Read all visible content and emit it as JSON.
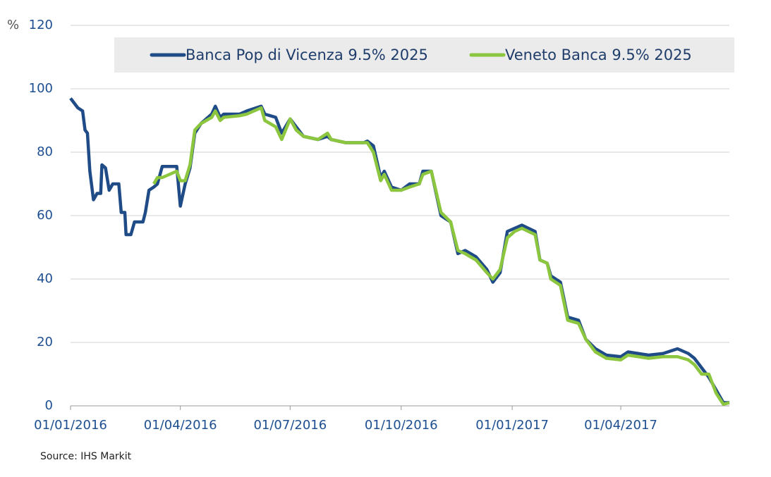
{
  "chart_data": {
    "type": "line",
    "y_unit_label": "%",
    "source": "Source: IHS Markit",
    "x": [
      "01/01/2016",
      "07/01/2016",
      "11/01/2016",
      "13/01/2016",
      "15/01/2016",
      "17/01/2016",
      "20/01/2016",
      "23/01/2016",
      "26/01/2016",
      "27/01/2016",
      "30/01/2016",
      "02/02/2016",
      "05/02/2016",
      "10/02/2016",
      "12/02/2016",
      "15/02/2016",
      "16/02/2016",
      "20/02/2016",
      "23/02/2016",
      "01/03/2016",
      "03/03/2016",
      "06/03/2016",
      "10/03/2016",
      "13/03/2016",
      "17/03/2016",
      "29/03/2016",
      "01/04/2016",
      "05/04/2016",
      "09/04/2016",
      "13/04/2016",
      "18/04/2016",
      "27/04/2016",
      "30/04/2016",
      "04/05/2016",
      "07/05/2016",
      "20/05/2016",
      "26/05/2016",
      "07/06/2016",
      "10/06/2016",
      "19/06/2016",
      "24/06/2016",
      "01/07/2016",
      "06/07/2016",
      "12/07/2016",
      "24/07/2016",
      "01/08/2016",
      "04/08/2016",
      "16/08/2016",
      "31/08/2016",
      "03/09/2016",
      "08/09/2016",
      "14/09/2016",
      "17/09/2016",
      "23/09/2016",
      "01/10/2016",
      "08/10/2016",
      "16/10/2016",
      "19/10/2016",
      "26/10/2016",
      "03/11/2016",
      "11/11/2016",
      "17/11/2016",
      "23/11/2016",
      "02/12/2016",
      "11/12/2016",
      "16/12/2016",
      "22/12/2016",
      "28/12/2016",
      "03/01/2017",
      "09/01/2017",
      "20/01/2017",
      "24/01/2017",
      "30/01/2017",
      "02/02/2017",
      "10/02/2017",
      "16/02/2017",
      "25/02/2017",
      "03/03/2017",
      "11/03/2017",
      "20/03/2017",
      "01/04/2017",
      "07/04/2017",
      "24/04/2017",
      "06/05/2017",
      "18/05/2017",
      "27/05/2017",
      "01/06/2017",
      "07/06/2017",
      "13/06/2017",
      "19/06/2017",
      "25/06/2017",
      "30/06/2017"
    ],
    "series": [
      {
        "name": "Banca Pop di Vicenza 9.5% 2025",
        "color": "#1f4b86",
        "values": [
          97,
          94,
          93,
          87,
          86,
          74,
          65,
          67,
          67,
          76,
          75,
          68,
          70,
          70,
          61,
          61,
          54,
          54,
          58,
          58,
          61,
          68,
          69,
          70,
          75.5,
          75.5,
          63,
          70,
          75,
          86,
          89,
          92,
          94.5,
          91,
          92,
          92,
          93,
          94.5,
          92,
          91,
          86,
          90.5,
          88,
          85,
          84,
          85,
          84,
          83,
          83,
          83.5,
          82,
          72,
          74,
          69,
          68,
          70,
          70,
          74,
          74,
          60,
          58,
          48,
          49,
          47,
          43,
          39,
          42,
          55,
          56,
          57,
          55,
          46,
          45,
          41,
          39,
          28,
          27,
          21,
          18,
          16,
          15.5,
          17,
          16,
          16.5,
          18,
          16.5,
          15,
          12,
          9,
          5,
          1,
          1
        ]
      },
      {
        "name": "Veneto Banca 9.5% 2025",
        "color": "#8cc63f",
        "values": [
          null,
          null,
          null,
          null,
          null,
          null,
          null,
          null,
          null,
          null,
          null,
          null,
          null,
          null,
          null,
          null,
          null,
          null,
          null,
          null,
          null,
          null,
          70,
          72,
          72,
          74,
          71,
          71,
          76,
          87,
          89,
          91,
          93,
          90,
          91,
          91.5,
          92,
          94,
          90,
          88,
          84,
          90.5,
          87,
          85,
          84,
          86,
          84,
          83,
          83,
          83,
          80,
          71,
          73,
          68,
          68,
          69,
          70,
          73,
          74,
          61,
          58,
          49,
          48,
          46,
          42,
          40,
          43,
          53,
          55,
          56,
          54,
          46,
          45,
          40,
          38,
          27,
          26,
          21,
          17,
          15,
          14.5,
          16,
          15,
          15.5,
          15.5,
          14.5,
          13,
          10,
          10,
          4,
          0.5,
          1
        ]
      }
    ],
    "xlim": [
      "01/01/2016",
      "30/06/2017"
    ],
    "xticks": [
      "01/01/2016",
      "01/04/2016",
      "01/07/2016",
      "01/10/2016",
      "01/01/2017",
      "01/04/2017"
    ],
    "ylim": [
      0,
      120
    ],
    "yticks": [
      0,
      20,
      40,
      60,
      80,
      100,
      120
    ],
    "grid": true,
    "legend": "top"
  }
}
